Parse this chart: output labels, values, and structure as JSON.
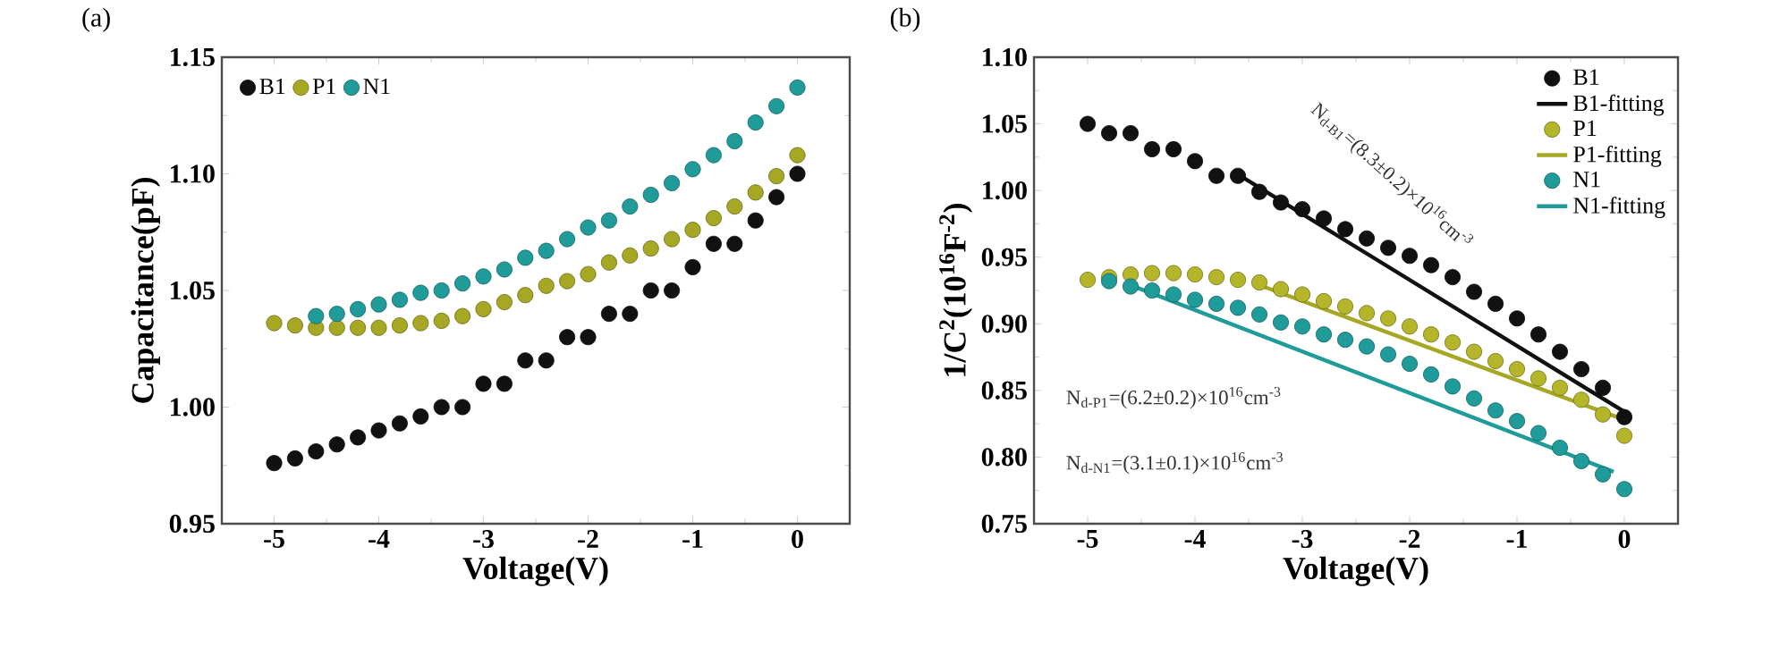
{
  "chart_data": [
    {
      "type": "scatter",
      "title": "(a)",
      "xlabel": "Voltage(V)",
      "ylabel": "Capacitance(pF)",
      "x": [
        -5,
        -4.8,
        -4.6,
        -4.4,
        -4.2,
        -4.0,
        -3.8,
        -3.6,
        -3.4,
        -3.2,
        -3.0,
        -2.8,
        -2.6,
        -2.4,
        -2.2,
        -2.0,
        -1.8,
        -1.6,
        -1.4,
        -1.2,
        -1.0,
        -0.8,
        -0.6,
        -0.4,
        -0.2,
        0
      ],
      "series": [
        {
          "name": "B1",
          "color": "#111111",
          "values": [
            0.976,
            0.978,
            0.981,
            0.984,
            0.987,
            0.99,
            0.993,
            0.996,
            1.0,
            1.0,
            1.01,
            1.01,
            1.02,
            1.02,
            1.03,
            1.03,
            1.04,
            1.04,
            1.05,
            1.05,
            1.06,
            1.07,
            1.07,
            1.08,
            1.09,
            1.1
          ]
        },
        {
          "name": "P1",
          "color": "#a6a824",
          "values": [
            1.036,
            1.035,
            1.034,
            1.034,
            1.034,
            1.034,
            1.035,
            1.036,
            1.037,
            1.039,
            1.042,
            1.045,
            1.048,
            1.052,
            1.054,
            1.057,
            1.062,
            1.065,
            1.068,
            1.072,
            1.076,
            1.081,
            1.086,
            1.092,
            1.099,
            1.108
          ]
        },
        {
          "name": "N1",
          "color": "#1f9c9a",
          "values": [
            null,
            null,
            1.039,
            1.04,
            1.042,
            1.044,
            1.046,
            1.049,
            1.05,
            1.053,
            1.056,
            1.059,
            1.064,
            1.067,
            1.072,
            1.077,
            1.08,
            1.086,
            1.091,
            1.096,
            1.102,
            1.108,
            1.114,
            1.122,
            1.129,
            1.137
          ]
        }
      ],
      "xlim": [
        -5.5,
        0.5
      ],
      "ylim": [
        0.95,
        1.15
      ],
      "xticks": [
        -5,
        -4,
        -3,
        -2,
        -1,
        0
      ],
      "yticks": [
        0.95,
        {
          "value": 1.0,
          "label": "1.00"
        },
        1.05,
        {
          "value": 1.1,
          "label": "1.10"
        },
        1.15
      ],
      "marker": "circle",
      "legend": "top left",
      "grid": false
    },
    {
      "type": "scatter",
      "title": "(b)",
      "xlabel": "Voltage(V)",
      "ylabel": "1/C$^{2}$(10$^{16}$F$^{-2}$)",
      "x": [
        -5,
        -4.8,
        -4.6,
        -4.4,
        -4.2,
        -4.0,
        -3.8,
        -3.6,
        -3.4,
        -3.2,
        -3.0,
        -2.8,
        -2.6,
        -2.4,
        -2.2,
        -2.0,
        -1.8,
        -1.6,
        -1.4,
        -1.2,
        -1.0,
        -0.8,
        -0.6,
        -0.4,
        -0.2,
        0
      ],
      "series": [
        {
          "name": "B1",
          "color": "#111111",
          "values": [
            1.05,
            1.043,
            1.043,
            1.031,
            1.031,
            1.022,
            1.011,
            1.011,
            0.999,
            0.991,
            0.986,
            0.979,
            0.971,
            0.964,
            0.957,
            0.951,
            0.944,
            0.935,
            0.924,
            0.915,
            0.904,
            0.892,
            0.879,
            0.866,
            0.852,
            0.83
          ]
        },
        {
          "name": "B1-fitting",
          "type": "line",
          "line_style": "solid",
          "marker": "none",
          "color": "#111111",
          "x": [
            -3.6,
            0
          ],
          "values": [
            1.012,
            0.834
          ]
        },
        {
          "name": "P1",
          "color": "#b5b52a",
          "values": [
            0.933,
            0.935,
            0.937,
            0.938,
            0.938,
            0.937,
            0.935,
            0.933,
            0.931,
            0.926,
            0.922,
            0.917,
            0.913,
            0.908,
            0.904,
            0.898,
            0.892,
            0.886,
            0.879,
            0.872,
            0.866,
            0.859,
            0.852,
            0.843,
            0.832,
            0.816
          ]
        },
        {
          "name": "P1-fitting",
          "type": "line",
          "line_style": "solid",
          "marker": "none",
          "color": "#a6a824",
          "x": [
            -3.4,
            0
          ],
          "values": [
            0.929,
            0.828
          ]
        },
        {
          "name": "N1",
          "color": "#1f9c9a",
          "values": [
            null,
            0.932,
            0.928,
            0.925,
            0.922,
            0.918,
            0.915,
            0.912,
            0.907,
            0.901,
            0.898,
            0.892,
            0.888,
            0.883,
            0.877,
            0.87,
            0.862,
            0.853,
            0.844,
            0.835,
            0.827,
            0.818,
            0.807,
            0.797,
            0.787,
            0.776
          ]
        },
        {
          "name": "N1-fitting",
          "type": "line",
          "line_style": "solid",
          "marker": "none",
          "color": "#1f9c9a",
          "x": [
            -4.6,
            -0.1
          ],
          "values": [
            0.929,
            0.789
          ]
        }
      ],
      "annotations": [
        "N$_{d-B1}$=(8.3±0.2)×10$^{16}$cm$^{-3}$",
        "N$_{d-P1}$=(6.2±0.2)×10$^{16}$cm$^{-3}$",
        "N$_{d-N1}$=(3.1±0.1)×10$^{16}$cm$^{-3}$"
      ],
      "xlim": [
        -5.5,
        0.5
      ],
      "ylim": [
        0.75,
        1.1
      ],
      "xticks": [
        -5,
        -4,
        -3,
        -2,
        -1,
        0
      ],
      "yticks": [
        0.75,
        {
          "value": 0.8,
          "label": "0.80"
        },
        0.85,
        {
          "value": 0.9,
          "label": "0.90"
        },
        0.95,
        {
          "value": 1.0,
          "label": "1.00"
        },
        1.05,
        {
          "value": 1.1,
          "label": "1.10"
        }
      ],
      "marker": "circle",
      "legend": "top right",
      "grid": false
    }
  ]
}
